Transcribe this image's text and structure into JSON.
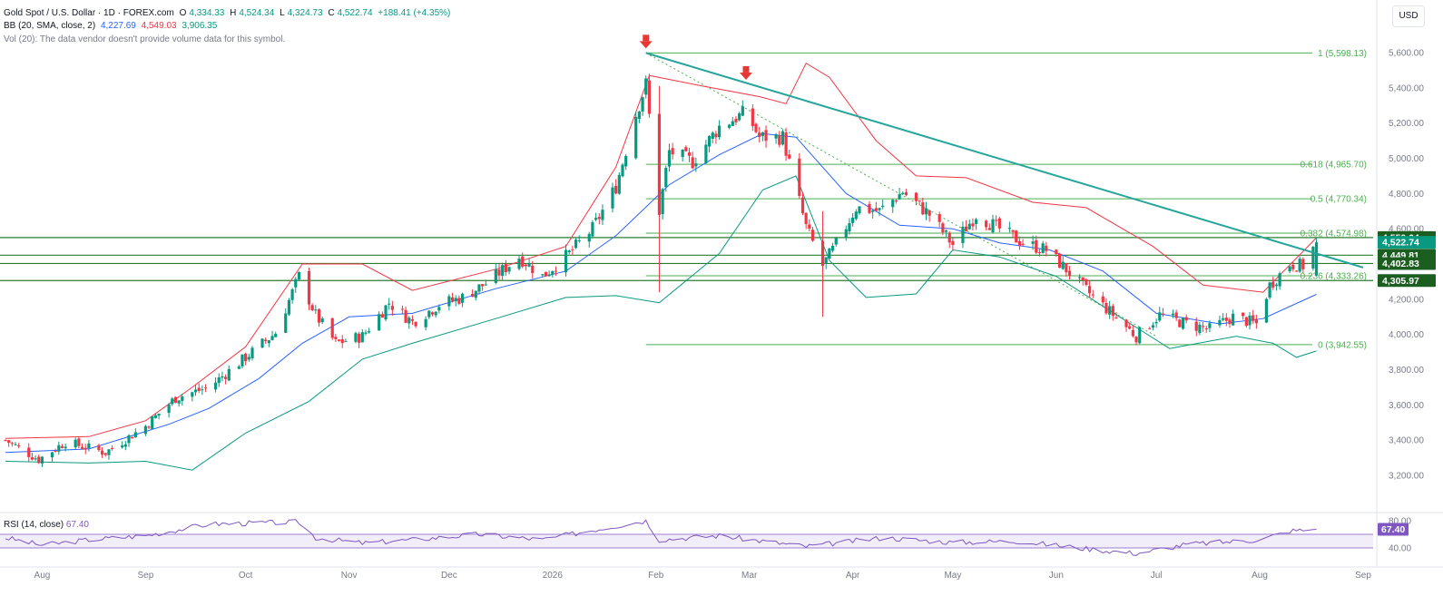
{
  "legend": {
    "symbol": "Gold Spot / U.S. Dollar · 1D · FOREX.com",
    "o_label": "O",
    "o": "4,334.33",
    "h_label": "H",
    "h": "4,524.34",
    "l_label": "L",
    "l": "4,324.73",
    "c_label": "C",
    "c": "4,522.74",
    "change": "+188.41 (+4.35%)",
    "bb_label": "BB (20, SMA, close, 2)",
    "bb_basis": "4,227.69",
    "bb_upper": "4,549.03",
    "bb_lower": "3,906.35",
    "vol_note": "Vol (20): The data vendor doesn't provide volume data for this symbol."
  },
  "currency": "USD",
  "rsi": {
    "label": "RSI (14, close)",
    "value": "67.40"
  },
  "colors": {
    "up": "#089981",
    "down": "#f23645",
    "bb_basis": "#2962ff",
    "bb_upper": "#f23645",
    "bb_lower": "#089981",
    "fib": "#4caf50",
    "trend": "#26a69a",
    "rsi": "#7e57c2"
  },
  "chart_data": [
    {
      "type": "candlestick",
      "y_ticks": [
        "5,600.00",
        "5,400.00",
        "5,200.00",
        "5,000.00",
        "4,800.00",
        "4,600.00",
        "4,400.00",
        "4,200.00",
        "4,000.00",
        "3,800.00",
        "3,600.00",
        "3,400.00",
        "3,200.00"
      ],
      "y_tick_values": [
        5600,
        5400,
        5200,
        5000,
        4800,
        4600,
        4400,
        4200,
        4000,
        3800,
        3600,
        3400,
        3200
      ],
      "x_ticks": [
        "Aug",
        "Sep",
        "Oct",
        "Nov",
        "Dec",
        "2026",
        "Feb",
        "Mar",
        "Apr",
        "May",
        "Jun",
        "Jul",
        "Aug",
        "Sep"
      ],
      "x_tick_dates": [
        "2025-08-01",
        "2025-09-01",
        "2025-10-01",
        "2025-11-01",
        "2025-12-01",
        "2026-01-01",
        "2026-02-01",
        "2026-03-01",
        "2026-04-01",
        "2026-05-01",
        "2026-06-01",
        "2026-07-01",
        "2026-08-01",
        "2026-09-01"
      ],
      "ylim": [
        3050,
        5760
      ],
      "close_series": [
        [
          "2025-07-21",
          3400
        ],
        [
          "2025-07-31",
          3290
        ],
        [
          "2025-08-08",
          3390
        ],
        [
          "2025-08-20",
          3330
        ],
        [
          "2025-09-01",
          3480
        ],
        [
          "2025-09-10",
          3640
        ],
        [
          "2025-09-20",
          3700
        ],
        [
          "2025-10-01",
          3870
        ],
        [
          "2025-10-10",
          4010
        ],
        [
          "2025-10-17",
          4330
        ],
        [
          "2025-10-22",
          4110
        ],
        [
          "2025-10-28",
          3950
        ],
        [
          "2025-11-05",
          3990
        ],
        [
          "2025-11-13",
          4180
        ],
        [
          "2025-11-20",
          4070
        ],
        [
          "2025-11-28",
          4170
        ],
        [
          "2025-12-05",
          4210
        ],
        [
          "2025-12-12",
          4290
        ],
        [
          "2025-12-22",
          4440
        ],
        [
          "2025-12-29",
          4330
        ],
        [
          "2026-01-06",
          4460
        ],
        [
          "2026-01-13",
          4600
        ],
        [
          "2026-01-20",
          4840
        ],
        [
          "2026-01-26",
          5250
        ],
        [
          "2026-01-29",
          5420
        ],
        [
          "2026-02-02",
          4700
        ],
        [
          "2026-02-05",
          5040
        ],
        [
          "2026-02-12",
          4980
        ],
        [
          "2026-02-20",
          5180
        ],
        [
          "2026-02-28",
          5260
        ],
        [
          "2026-03-04",
          5120
        ],
        [
          "2026-03-11",
          5120
        ],
        [
          "2026-03-18",
          4610
        ],
        [
          "2026-03-23",
          4390
        ],
        [
          "2026-03-27",
          4510
        ],
        [
          "2026-04-02",
          4720
        ],
        [
          "2026-04-09",
          4700
        ],
        [
          "2026-04-16",
          4810
        ],
        [
          "2026-04-24",
          4680
        ],
        [
          "2026-05-01",
          4510
        ],
        [
          "2026-05-08",
          4680
        ],
        [
          "2026-05-14",
          4610
        ],
        [
          "2026-05-22",
          4520
        ],
        [
          "2026-05-29",
          4480
        ],
        [
          "2026-06-05",
          4350
        ],
        [
          "2026-06-10",
          4250
        ],
        [
          "2026-06-17",
          4130
        ],
        [
          "2026-06-25",
          3990
        ],
        [
          "2026-07-02",
          4110
        ],
        [
          "2026-07-10",
          4060
        ],
        [
          "2026-07-17",
          4030
        ],
        [
          "2026-07-24",
          4100
        ],
        [
          "2026-07-31",
          4060
        ],
        [
          "2026-08-04",
          4280
        ],
        [
          "2026-08-10",
          4400
        ],
        [
          "2026-08-14",
          4390
        ],
        [
          "2026-08-18",
          4522.74
        ]
      ],
      "bb_basis": [
        [
          "2025-07-21",
          3330
        ],
        [
          "2025-08-15",
          3350
        ],
        [
          "2025-09-08",
          3490
        ],
        [
          "2025-09-20",
          3580
        ],
        [
          "2025-10-05",
          3750
        ],
        [
          "2025-10-18",
          3950
        ],
        [
          "2025-11-01",
          4100
        ],
        [
          "2025-11-20",
          4120
        ],
        [
          "2025-12-15",
          4260
        ],
        [
          "2026-01-05",
          4360
        ],
        [
          "2026-01-20",
          4560
        ],
        [
          "2026-02-05",
          4850
        ],
        [
          "2026-02-20",
          5020
        ],
        [
          "2026-03-05",
          5140
        ],
        [
          "2026-03-15",
          5120
        ],
        [
          "2026-03-30",
          4800
        ],
        [
          "2026-04-15",
          4620
        ],
        [
          "2026-05-01",
          4600
        ],
        [
          "2026-05-15",
          4520
        ],
        [
          "2026-05-30",
          4480
        ],
        [
          "2026-06-15",
          4360
        ],
        [
          "2026-07-01",
          4120
        ],
        [
          "2026-07-20",
          4060
        ],
        [
          "2026-08-02",
          4090
        ],
        [
          "2026-08-18",
          4227.69
        ]
      ],
      "bb_upper": [
        [
          "2025-07-21",
          3410
        ],
        [
          "2025-08-15",
          3420
        ],
        [
          "2025-09-01",
          3510
        ],
        [
          "2025-09-15",
          3700
        ],
        [
          "2025-10-01",
          3930
        ],
        [
          "2025-10-18",
          4400
        ],
        [
          "2025-11-05",
          4400
        ],
        [
          "2025-11-20",
          4250
        ],
        [
          "2025-12-15",
          4370
        ],
        [
          "2026-01-05",
          4500
        ],
        [
          "2026-01-20",
          4950
        ],
        [
          "2026-01-30",
          5470
        ],
        [
          "2026-02-15",
          5410
        ],
        [
          "2026-03-04",
          5350
        ],
        [
          "2026-03-12",
          5310
        ],
        [
          "2026-03-18",
          5540
        ],
        [
          "2026-03-25",
          5460
        ],
        [
          "2026-04-08",
          5100
        ],
        [
          "2026-04-20",
          4900
        ],
        [
          "2026-05-05",
          4890
        ],
        [
          "2026-05-25",
          4750
        ],
        [
          "2026-06-10",
          4720
        ],
        [
          "2026-06-30",
          4500
        ],
        [
          "2026-07-15",
          4280
        ],
        [
          "2026-08-02",
          4240
        ],
        [
          "2026-08-18",
          4549.03
        ]
      ],
      "bb_lower": [
        [
          "2025-07-21",
          3280
        ],
        [
          "2025-08-15",
          3270
        ],
        [
          "2025-09-01",
          3280
        ],
        [
          "2025-09-15",
          3230
        ],
        [
          "2025-10-01",
          3440
        ],
        [
          "2025-10-20",
          3620
        ],
        [
          "2025-11-05",
          3860
        ],
        [
          "2025-11-20",
          3950
        ],
        [
          "2025-12-15",
          4090
        ],
        [
          "2026-01-05",
          4210
        ],
        [
          "2026-01-20",
          4220
        ],
        [
          "2026-02-02",
          4180
        ],
        [
          "2026-02-20",
          4460
        ],
        [
          "2026-03-05",
          4820
        ],
        [
          "2026-03-15",
          4900
        ],
        [
          "2026-03-25",
          4420
        ],
        [
          "2026-04-05",
          4210
        ],
        [
          "2026-04-20",
          4230
        ],
        [
          "2026-05-01",
          4480
        ],
        [
          "2026-05-15",
          4440
        ],
        [
          "2026-06-01",
          4330
        ],
        [
          "2026-06-20",
          4100
        ],
        [
          "2026-07-05",
          3920
        ],
        [
          "2026-07-25",
          3990
        ],
        [
          "2026-08-05",
          3950
        ],
        [
          "2026-08-12",
          3870
        ],
        [
          "2026-08-18",
          3906.35
        ]
      ],
      "fib_levels": [
        {
          "label": "1 (5,598.13)",
          "value": 5598.13
        },
        {
          "label": "0.618 (4,965.70)",
          "value": 4965.7
        },
        {
          "label": "0.5 (4,770.34)",
          "value": 4770.34
        },
        {
          "label": "0.382 (4,574.98)",
          "value": 4574.98
        },
        {
          "label": "0.236 (4,333.26)",
          "value": 4333.26
        },
        {
          "label": "0 (3,942.55)",
          "value": 3942.55
        }
      ],
      "horizontal_levels": [
        4550.04,
        4449.81,
        4402.83,
        4305.97
      ],
      "price_labels": [
        {
          "text": "4,550.04",
          "value": 4550.04,
          "color": "#1b5e20"
        },
        {
          "text": "4,522.74",
          "value": 4522.74,
          "color": "#089981"
        },
        {
          "text": "4,449.81",
          "value": 4449.81,
          "color": "#1b5e20"
        },
        {
          "text": "4,402.83",
          "value": 4402.83,
          "color": "#1b5e20"
        },
        {
          "text": "4,305.97",
          "value": 4305.97,
          "color": "#1b5e20"
        }
      ],
      "trend_line": {
        "start": [
          "2026-01-29",
          5598.13
        ],
        "end": [
          "2026-09-01",
          4380
        ]
      },
      "markers": [
        {
          "date": "2026-01-29",
          "value": 5598.13,
          "icon": "down-arrow-icon"
        },
        {
          "date": "2026-02-28",
          "value": 5420,
          "icon": "down-arrow-icon"
        }
      ]
    },
    {
      "type": "line",
      "title": "RSI (14, close)",
      "y_ticks": [
        "80.00",
        "40.00"
      ],
      "y_tick_values": [
        80,
        40
      ],
      "ylim": [
        25,
        85
      ],
      "band": [
        40,
        60
      ],
      "series": [
        {
          "name": "RSI (14, close)",
          "points": [
            [
              "2025-07-21",
              55
            ],
            [
              "2025-08-01",
              44
            ],
            [
              "2025-08-15",
              52
            ],
            [
              "2025-09-01",
              58
            ],
            [
              "2025-09-20",
              75
            ],
            [
              "2025-10-17",
              78
            ],
            [
              "2025-10-22",
              55
            ],
            [
              "2025-11-05",
              47
            ],
            [
              "2025-11-20",
              52
            ],
            [
              "2025-12-10",
              60
            ],
            [
              "2025-12-29",
              52
            ],
            [
              "2026-01-15",
              68
            ],
            [
              "2026-01-29",
              80
            ],
            [
              "2026-02-02",
              52
            ],
            [
              "2026-02-20",
              58
            ],
            [
              "2026-03-18",
              42
            ],
            [
              "2026-04-10",
              55
            ],
            [
              "2026-05-01",
              48
            ],
            [
              "2026-05-20",
              50
            ],
            [
              "2026-06-12",
              38
            ],
            [
              "2026-06-25",
              32
            ],
            [
              "2026-07-10",
              45
            ],
            [
              "2026-08-01",
              52
            ],
            [
              "2026-08-10",
              65
            ],
            [
              "2026-08-18",
              67.4
            ]
          ]
        }
      ]
    }
  ]
}
